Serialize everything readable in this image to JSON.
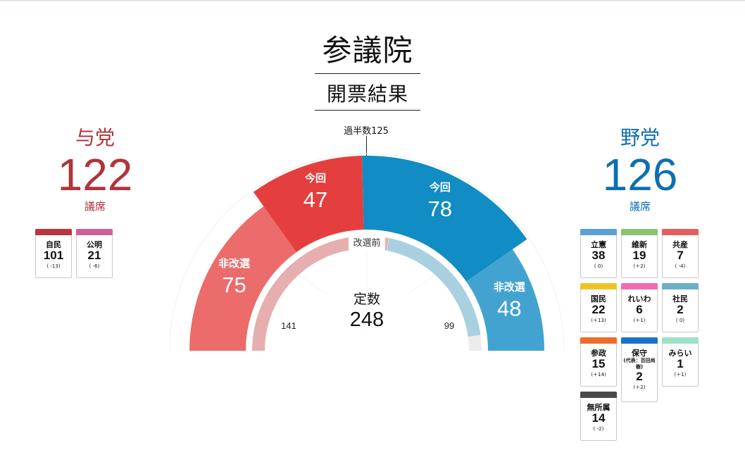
{
  "page": {
    "title": "参議院",
    "subtitle": "開票結果",
    "majority_label": "過半数125"
  },
  "ruling": {
    "name": "与党",
    "total": "122",
    "unit": "議席",
    "color": "#b0343c",
    "parties": [
      {
        "name": "自民",
        "seats": "101",
        "change": "( -13)",
        "color": "#b8353c"
      },
      {
        "name": "公明",
        "seats": "21",
        "change": "( -6)",
        "color": "#d0609a"
      }
    ]
  },
  "opposition": {
    "name": "野党",
    "total": "126",
    "unit": "議席",
    "color": "#0e6fb0",
    "parties": [
      {
        "name": "立憲",
        "seats": "38",
        "change": "( 0)",
        "color": "#5aa2d6"
      },
      {
        "name": "維新",
        "seats": "19",
        "change": "(＋2)",
        "color": "#8cc36a"
      },
      {
        "name": "共産",
        "seats": "7",
        "change": "( -4)",
        "color": "#e45e5e"
      },
      {
        "name": "国民",
        "seats": "22",
        "change": "(＋13)",
        "color": "#f2c224"
      },
      {
        "name": "れいわ",
        "seats": "6",
        "change": "(＋1)",
        "color": "#f26cb4"
      },
      {
        "name": "社民",
        "seats": "2",
        "change": "( 0)",
        "color": "#6aafc6"
      },
      {
        "name": "参政",
        "seats": "15",
        "change": "(＋14)",
        "color": "#ee6b2a"
      },
      {
        "name": "保守",
        "note": "(代表：百田尚樹)",
        "seats": "2",
        "change": "(＋2)",
        "color": "#1a74c6"
      },
      {
        "name": "みらい",
        "seats": "1",
        "change": "(＋1)",
        "color": "#9ee0c8"
      },
      {
        "name": "無所属",
        "seats": "14",
        "change": "( -2)",
        "color": "#4a4a4a"
      }
    ]
  },
  "chart_data": {
    "type": "pie",
    "subtype": "semicircle",
    "total_label": "定数",
    "total": 248,
    "majority": 125,
    "outer_ring": [
      {
        "group": "ruling",
        "label": "非改選",
        "value": 75,
        "color": "#ec6b6b"
      },
      {
        "group": "ruling",
        "label": "今回",
        "value": 47,
        "color": "#e53e3f"
      },
      {
        "group": "opposition",
        "label": "今回",
        "value": 78,
        "color": "#118cc4"
      },
      {
        "group": "opposition",
        "label": "非改選",
        "value": 48,
        "color": "#43a3d0"
      }
    ],
    "inner_ring": {
      "label": "改選前",
      "values": [
        {
          "group": "ruling",
          "value": 141,
          "color": "#e6aeae"
        },
        {
          "group": "opposition",
          "value": 99,
          "color": "#a8d0e0"
        }
      ]
    }
  }
}
